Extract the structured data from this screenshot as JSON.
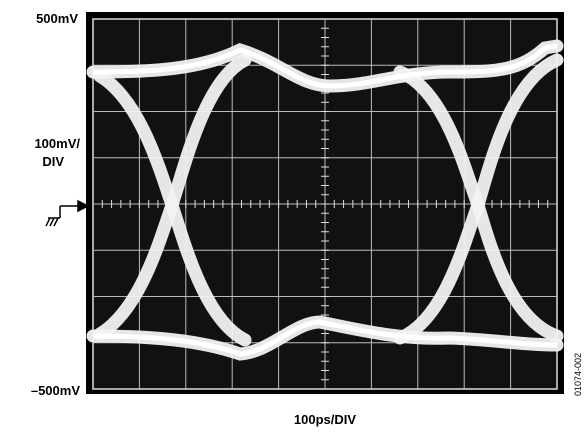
{
  "labels": {
    "top": "500mV",
    "scale_line1": "100mV/",
    "scale_line2": "DIV",
    "bottom": "–500mV",
    "x_scale": "100ps/DIV",
    "figure_id": "01074-002"
  }
}
